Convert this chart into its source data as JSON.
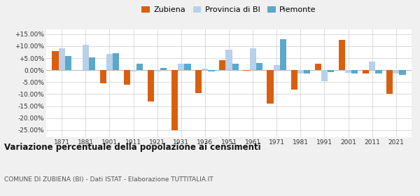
{
  "years": [
    1871,
    1881,
    1901,
    1911,
    1921,
    1931,
    1936,
    1951,
    1961,
    1971,
    1981,
    1991,
    2001,
    2011,
    2021
  ],
  "zubiena": [
    7.8,
    0.1,
    -5.5,
    -6.0,
    -13.0,
    -25.0,
    -9.5,
    4.0,
    -0.2,
    -14.0,
    -8.0,
    2.7,
    12.5,
    -1.5,
    -10.0
  ],
  "provincia_bi": [
    9.0,
    10.5,
    6.8,
    -0.5,
    -0.5,
    2.8,
    0.6,
    8.5,
    9.0,
    2.0,
    -1.5,
    -4.5,
    -1.0,
    3.5,
    -1.5
  ],
  "piemonte": [
    6.0,
    5.2,
    7.2,
    2.8,
    0.8,
    2.8,
    -0.5,
    2.8,
    3.0,
    13.0,
    -1.5,
    -0.8,
    -1.5,
    -1.5,
    -2.0
  ],
  "color_zubiena": "#d95f0e",
  "color_provincia": "#b8d0ea",
  "color_piemonte": "#5ba8c8",
  "title": "Variazione percentuale della popolazione ai censimenti",
  "subtitle": "COMUNE DI ZUBIENA (BI) - Dati ISTAT - Elaborazione TUTTITALIA.IT",
  "legend_labels": [
    "Zubiena",
    "Provincia di BI",
    "Piemonte"
  ],
  "ylim": [
    -28,
    17
  ],
  "yticks": [
    -25,
    -20,
    -15,
    -10,
    -5,
    0,
    5,
    10,
    15
  ],
  "ytick_labels": [
    "-25.00%",
    "-20.00%",
    "-15.00%",
    "-10.00%",
    "-5.00%",
    "0.00%",
    "+5.00%",
    "+10.00%",
    "+15.00%"
  ],
  "bg_color": "#f0f0f0",
  "plot_bg_color": "#ffffff"
}
